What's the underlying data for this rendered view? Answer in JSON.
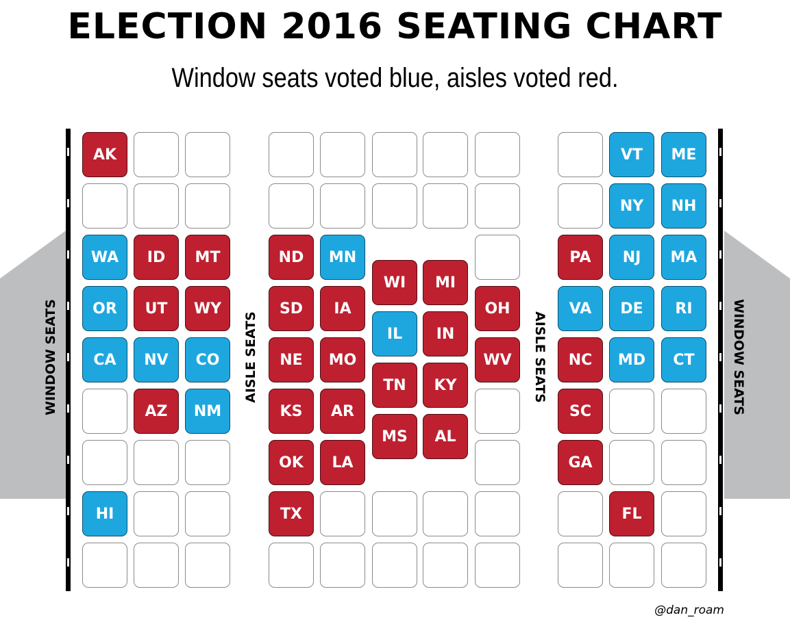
{
  "title": "ELECTION 2016 SEATING CHART",
  "subtitle": "Window seats voted blue, aisles voted red.",
  "labels": {
    "window_left": "WINDOW SEATS",
    "aisle_left": "AISLE SEATS",
    "aisle_right": "AISLE SEATS",
    "window_right": "WINDOW SEATS"
  },
  "credit": "@dan_roam",
  "colors": {
    "red": "#be2030",
    "blue": "#1ea7df",
    "empty": "#ffffff",
    "wing": "#bdbec0"
  },
  "sections": {
    "left": [
      [
        {
          "label": "AK",
          "party": "red"
        },
        {
          "label": "",
          "party": "empty"
        },
        {
          "label": "",
          "party": "empty"
        }
      ],
      [
        {
          "label": "",
          "party": "empty"
        },
        {
          "label": "",
          "party": "empty"
        },
        {
          "label": "",
          "party": "empty"
        }
      ],
      [
        {
          "label": "WA",
          "party": "blue"
        },
        {
          "label": "ID",
          "party": "red"
        },
        {
          "label": "MT",
          "party": "red"
        }
      ],
      [
        {
          "label": "OR",
          "party": "blue"
        },
        {
          "label": "UT",
          "party": "red"
        },
        {
          "label": "WY",
          "party": "red"
        }
      ],
      [
        {
          "label": "CA",
          "party": "blue"
        },
        {
          "label": "NV",
          "party": "blue"
        },
        {
          "label": "CO",
          "party": "blue"
        }
      ],
      [
        {
          "label": "",
          "party": "empty"
        },
        {
          "label": "AZ",
          "party": "red"
        },
        {
          "label": "NM",
          "party": "blue"
        }
      ],
      [
        {
          "label": "",
          "party": "empty"
        },
        {
          "label": "",
          "party": "empty"
        },
        {
          "label": "",
          "party": "empty"
        }
      ],
      [
        {
          "label": "HI",
          "party": "blue"
        },
        {
          "label": "",
          "party": "empty"
        },
        {
          "label": "",
          "party": "empty"
        }
      ],
      [
        {
          "label": "",
          "party": "empty"
        },
        {
          "label": "",
          "party": "empty"
        },
        {
          "label": "",
          "party": "empty"
        }
      ]
    ],
    "middle": [
      [
        {
          "label": "",
          "party": "empty"
        },
        {
          "label": "",
          "party": "empty"
        },
        {
          "label": "",
          "party": "empty"
        },
        {
          "label": "",
          "party": "empty"
        },
        {
          "label": "",
          "party": "empty"
        }
      ],
      [
        {
          "label": "",
          "party": "empty"
        },
        {
          "label": "",
          "party": "empty"
        },
        {
          "label": "",
          "party": "empty"
        },
        {
          "label": "",
          "party": "empty"
        },
        {
          "label": "",
          "party": "empty"
        }
      ],
      [
        {
          "label": "ND",
          "party": "red"
        },
        {
          "label": "MN",
          "party": "blue"
        },
        null,
        null,
        {
          "label": "",
          "party": "empty"
        }
      ],
      [
        {
          "label": "SD",
          "party": "red"
        },
        {
          "label": "IA",
          "party": "red"
        },
        {
          "label": "WI",
          "party": "red"
        },
        {
          "label": "MI",
          "party": "red"
        },
        {
          "label": "OH",
          "party": "red"
        }
      ],
      [
        {
          "label": "NE",
          "party": "red"
        },
        {
          "label": "MO",
          "party": "red"
        },
        {
          "label": "IL",
          "party": "blue"
        },
        {
          "label": "IN",
          "party": "red"
        },
        {
          "label": "WV",
          "party": "red"
        }
      ],
      [
        {
          "label": "KS",
          "party": "red"
        },
        {
          "label": "AR",
          "party": "red"
        },
        {
          "label": "TN",
          "party": "red"
        },
        {
          "label": "KY",
          "party": "red"
        },
        {
          "label": "",
          "party": "empty"
        }
      ],
      [
        {
          "label": "OK",
          "party": "red"
        },
        {
          "label": "LA",
          "party": "red"
        },
        {
          "label": "MS",
          "party": "red"
        },
        {
          "label": "AL",
          "party": "red"
        },
        {
          "label": "",
          "party": "empty"
        }
      ],
      [
        {
          "label": "TX",
          "party": "red"
        },
        {
          "label": "",
          "party": "empty"
        },
        {
          "label": "",
          "party": "empty"
        },
        {
          "label": "",
          "party": "empty"
        },
        {
          "label": "",
          "party": "empty"
        }
      ],
      [
        {
          "label": "",
          "party": "empty"
        },
        {
          "label": "",
          "party": "empty"
        },
        {
          "label": "",
          "party": "empty"
        },
        {
          "label": "",
          "party": "empty"
        },
        {
          "label": "",
          "party": "empty"
        }
      ]
    ],
    "right": [
      [
        {
          "label": "",
          "party": "empty"
        },
        {
          "label": "VT",
          "party": "blue"
        },
        {
          "label": "ME",
          "party": "blue"
        }
      ],
      [
        {
          "label": "",
          "party": "empty"
        },
        {
          "label": "NY",
          "party": "blue"
        },
        {
          "label": "NH",
          "party": "blue"
        }
      ],
      [
        {
          "label": "PA",
          "party": "red"
        },
        {
          "label": "NJ",
          "party": "blue"
        },
        {
          "label": "MA",
          "party": "blue"
        }
      ],
      [
        {
          "label": "VA",
          "party": "blue"
        },
        {
          "label": "DE",
          "party": "blue"
        },
        {
          "label": "RI",
          "party": "blue"
        }
      ],
      [
        {
          "label": "NC",
          "party": "red"
        },
        {
          "label": "MD",
          "party": "blue"
        },
        {
          "label": "CT",
          "party": "blue"
        }
      ],
      [
        {
          "label": "SC",
          "party": "red"
        },
        {
          "label": "",
          "party": "empty"
        },
        {
          "label": "",
          "party": "empty"
        }
      ],
      [
        {
          "label": "GA",
          "party": "red"
        },
        {
          "label": "",
          "party": "empty"
        },
        {
          "label": "",
          "party": "empty"
        }
      ],
      [
        {
          "label": "",
          "party": "empty"
        },
        {
          "label": "FL",
          "party": "red"
        },
        {
          "label": "",
          "party": "empty"
        }
      ],
      [
        {
          "label": "",
          "party": "empty"
        },
        {
          "label": "",
          "party": "empty"
        },
        {
          "label": "",
          "party": "empty"
        }
      ]
    ]
  }
}
